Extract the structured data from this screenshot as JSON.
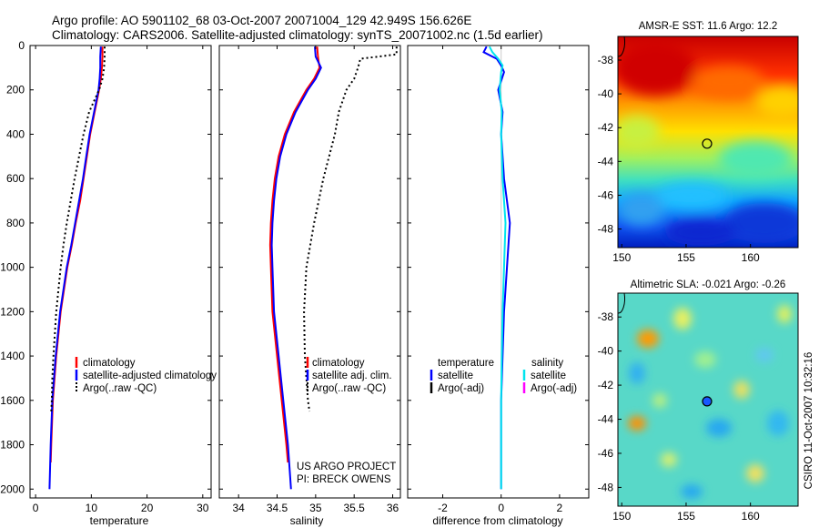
{
  "header": {
    "line1": "Argo profile: AO 5901102_68 03-Oct-2007 20071004_129 42.949S 156.626E",
    "line2": "Climatology: CARS2006. Satellite-adjusted climatology: synTS_20071002.nc (1.5d earlier)"
  },
  "chart_data": [
    {
      "type": "line",
      "xlabel": "temperature",
      "ylabel": "",
      "xlim": [
        -1,
        31.5
      ],
      "ylim": [
        2040,
        0
      ],
      "xticks": [
        0,
        10,
        20,
        30
      ],
      "yticks": [
        0,
        200,
        400,
        600,
        800,
        1000,
        1200,
        1400,
        1600,
        1800,
        2000
      ],
      "legend": [
        "climatology",
        "satellite-adjusted climatology",
        "Argo(..raw -QC)"
      ],
      "series": [
        {
          "name": "climatology",
          "color": "#ff0000",
          "depth": [
            5,
            50,
            100,
            150,
            200,
            300,
            400,
            500,
            600,
            700,
            800,
            900,
            1000,
            1200,
            1400,
            1600,
            1800,
            1880
          ],
          "values": [
            12.0,
            12.0,
            11.9,
            11.7,
            11.4,
            10.6,
            9.8,
            9.2,
            8.6,
            8.0,
            7.2,
            6.5,
            5.7,
            4.5,
            3.7,
            3.1,
            2.8,
            2.7
          ]
        },
        {
          "name": "satellite-adjusted climatology",
          "color": "#0000ff",
          "depth": [
            5,
            50,
            100,
            150,
            200,
            300,
            400,
            500,
            600,
            700,
            800,
            900,
            1000,
            1200,
            1400,
            1600,
            1800,
            2000
          ],
          "values": [
            11.7,
            11.6,
            11.6,
            11.5,
            11.3,
            10.5,
            9.7,
            9.1,
            8.5,
            7.8,
            7.1,
            6.4,
            5.6,
            4.4,
            3.6,
            3.0,
            2.7,
            2.5
          ]
        },
        {
          "name": "Argo(..raw -QC)",
          "color": "#000000",
          "dashed": true,
          "depth": [
            5,
            50,
            100,
            150,
            200,
            300,
            400,
            500,
            600,
            700,
            800,
            900,
            1000,
            1200,
            1400,
            1500,
            1600,
            1650
          ],
          "values": [
            12.4,
            12.4,
            12.3,
            12.0,
            11.4,
            9.6,
            8.6,
            7.8,
            7.0,
            6.3,
            5.6,
            5.0,
            4.5,
            3.7,
            3.2,
            3.0,
            2.9,
            2.8
          ]
        }
      ]
    },
    {
      "type": "line",
      "xlabel": "salinity",
      "xlim": [
        33.75,
        36.1
      ],
      "ylim": [
        2040,
        0
      ],
      "xticks": [
        34,
        34.5,
        35,
        35.5,
        36
      ],
      "legend": [
        "climatology",
        "satellite adj. clim.",
        "Argo(..raw -QC)"
      ],
      "annotation": [
        "US ARGO PROJECT",
        "PI: BRECK OWENS"
      ],
      "series": [
        {
          "name": "climatology",
          "color": "#ff0000",
          "depth": [
            5,
            50,
            100,
            150,
            200,
            300,
            400,
            500,
            600,
            700,
            800,
            900,
            1000,
            1200,
            1400,
            1600,
            1800,
            1880
          ],
          "values": [
            35.02,
            35.03,
            35.05,
            34.98,
            34.88,
            34.72,
            34.6,
            34.52,
            34.47,
            34.44,
            34.42,
            34.41,
            34.42,
            34.44,
            34.5,
            34.56,
            34.62,
            34.64
          ]
        },
        {
          "name": "satellite adj. clim.",
          "color": "#0000ff",
          "depth": [
            5,
            50,
            100,
            150,
            200,
            300,
            400,
            500,
            600,
            700,
            800,
            900,
            1000,
            1200,
            1400,
            1600,
            1800,
            2000
          ],
          "values": [
            34.99,
            35.0,
            35.07,
            35.0,
            34.9,
            34.74,
            34.62,
            34.54,
            34.49,
            34.46,
            34.44,
            34.43,
            34.44,
            34.46,
            34.52,
            34.58,
            34.64,
            34.68
          ]
        },
        {
          "name": "Argo(..raw -QC)",
          "color": "#000000",
          "dashed": true,
          "depth": [
            5,
            40,
            60,
            100,
            150,
            200,
            300,
            400,
            600,
            800,
            1000,
            1200,
            1400,
            1600,
            1650
          ],
          "values": [
            36.05,
            36.05,
            35.58,
            35.55,
            35.5,
            35.4,
            35.3,
            35.25,
            35.1,
            34.98,
            34.88,
            34.85,
            34.86,
            34.9,
            34.92
          ]
        }
      ]
    },
    {
      "type": "line",
      "xlabel": "difference from climatology",
      "xlim": [
        -3.2,
        3.0
      ],
      "ylim": [
        2040,
        0
      ],
      "xticks": [
        -2,
        0,
        2
      ],
      "legend_left_title": "temperature",
      "legend_right_title": "salinity",
      "legend_left": [
        "satellite",
        "Argo(-adj)"
      ],
      "legend_right": [
        "satellite",
        "Argo(-adj)"
      ],
      "series": [
        {
          "name": "temperature satellite",
          "color": "#0000ff",
          "depth": [
            5,
            30,
            60,
            90,
            120,
            200,
            300,
            400,
            600,
            800,
            1000,
            1200,
            1400,
            1600,
            1800,
            2000
          ],
          "values": [
            -0.5,
            -0.6,
            -0.15,
            0.0,
            0.1,
            -0.1,
            0.05,
            0.0,
            0.1,
            0.3,
            0.2,
            0.1,
            0.05,
            0.0,
            0.0,
            0.0
          ]
        },
        {
          "name": "salinity satellite",
          "color": "#00e5ee",
          "depth": [
            5,
            30,
            60,
            90,
            120,
            200,
            300,
            400,
            600,
            800,
            1000,
            1200,
            1400,
            1600,
            1800,
            2000
          ],
          "values": [
            -0.4,
            -0.3,
            -0.1,
            0.05,
            0.0,
            -0.05,
            0.02,
            0.0,
            0.05,
            0.15,
            0.1,
            0.05,
            0.02,
            0.0,
            0.0,
            0.0
          ]
        }
      ]
    },
    {
      "type": "heatmap",
      "title": "AMSR-E SST: 11.6  Argo: 12.2",
      "xticks": [
        150,
        155,
        160
      ],
      "yticks": [
        -38,
        -40,
        -42,
        -44,
        -46,
        -48
      ],
      "xlim": [
        149.7,
        163.7
      ],
      "ylim": [
        -49.1,
        -36.6
      ],
      "float": {
        "lon": 156.626,
        "lat": -42.949
      }
    },
    {
      "type": "heatmap",
      "title": "Altimetric SLA: -0.021  Argo: -0.26",
      "xticks": [
        150,
        155,
        160
      ],
      "yticks": [
        -38,
        -40,
        -42,
        -44,
        -46,
        -48
      ],
      "xlim": [
        149.7,
        163.7
      ],
      "ylim": [
        -49.1,
        -36.6
      ],
      "float": {
        "lon": 156.626,
        "lat": -42.949
      },
      "side_label": "CSIRO 11-Oct-2007 10:32:16"
    }
  ]
}
